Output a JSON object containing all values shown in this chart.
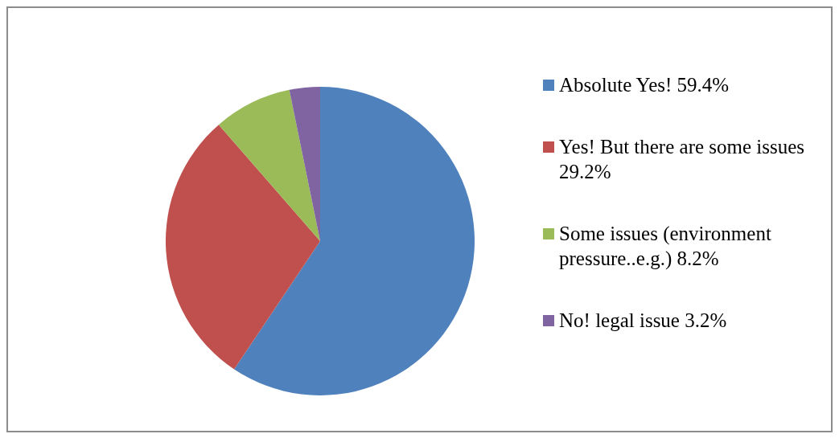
{
  "chart_data": {
    "type": "pie",
    "categories": [
      "Absolute Yes! 59.4%",
      "Yes! But there are some issues 29.2%",
      "Some issues (environment pressure..e.g.) 8.2%",
      "No! legal issue 3.2%"
    ],
    "values": [
      59.4,
      29.2,
      8.2,
      3.2
    ],
    "colors": [
      "#4f81bd",
      "#c0504d",
      "#9bbb59",
      "#8064a2"
    ],
    "legend": "right"
  }
}
